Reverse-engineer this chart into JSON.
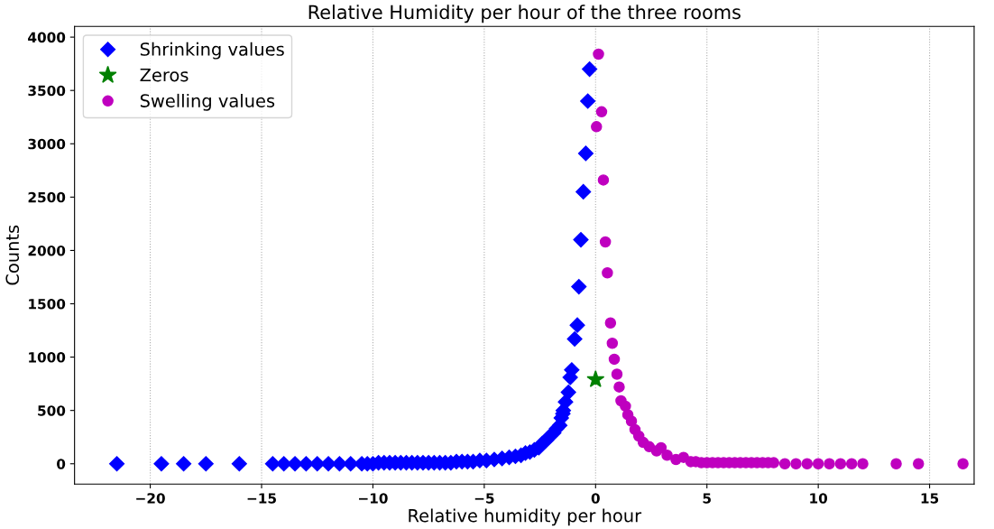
{
  "chart_data": {
    "type": "scatter",
    "title": "Relative Humidity per hour of the three rooms",
    "xlabel": "Relative humidity per hour",
    "ylabel": "Counts",
    "xlim": [
      -23.4,
      17.0
    ],
    "ylim": [
      -190,
      4100
    ],
    "xticks": [
      {
        "value": -20,
        "label": "−20"
      },
      {
        "value": -15,
        "label": "−15"
      },
      {
        "value": -10,
        "label": "−10"
      },
      {
        "value": -5,
        "label": "−5"
      },
      0,
      5,
      10,
      15
    ],
    "yticks": [
      0,
      500,
      1000,
      1500,
      2000,
      2500,
      3000,
      3500,
      4000
    ],
    "grid": "x",
    "legend": "top left",
    "series": [
      {
        "name": "Shrinking values",
        "color": "#0000ff",
        "marker": "diamond",
        "x": [
          -21.5,
          -19.5,
          -18.5,
          -17.5,
          -16.0,
          -14.5,
          -14.0,
          -13.5,
          -13.0,
          -12.5,
          -12.0,
          -11.5,
          -11.0,
          -10.5,
          -10.25,
          -10.0,
          -9.75,
          -9.5,
          -9.25,
          -9.0,
          -8.75,
          -8.5,
          -8.25,
          -8.0,
          -7.75,
          -7.5,
          -7.25,
          -7.0,
          -6.75,
          -6.5,
          -6.25,
          -6.0,
          -5.75,
          -5.5,
          -5.2,
          -4.9,
          -4.55,
          -4.2,
          -3.88,
          -3.6,
          -3.35,
          -3.15,
          -2.95,
          -2.75,
          -2.55,
          -2.4,
          -2.21,
          -2.05,
          -1.88,
          -1.75,
          -1.61,
          -1.47,
          -1.54,
          -1.45,
          -1.35,
          -1.22,
          -1.14,
          -1.07,
          -0.94,
          -0.82,
          -0.75,
          -0.66,
          -0.55,
          -0.44,
          -0.35,
          -0.27
        ],
        "values": [
          0,
          0,
          0,
          0,
          0,
          0,
          0,
          0,
          0,
          0,
          0,
          0,
          0,
          0,
          0,
          0,
          10,
          10,
          10,
          10,
          10,
          10,
          10,
          10,
          10,
          10,
          10,
          10,
          10,
          10,
          20,
          20,
          20,
          20,
          30,
          30,
          40,
          50,
          60,
          70,
          80,
          100,
          110,
          130,
          150,
          190,
          220,
          260,
          290,
          330,
          360,
          470,
          430,
          500,
          580,
          670,
          810,
          880,
          1170,
          1300,
          1660,
          2100,
          2550,
          2910,
          3400,
          3700
        ]
      },
      {
        "name": "Zeros",
        "color": "#008000",
        "marker": "star",
        "x": [
          0
        ],
        "values": [
          790
        ]
      },
      {
        "name": "Swelling values",
        "color": "#bf00bf",
        "marker": "circle",
        "x": [
          0.04,
          0.13,
          0.27,
          0.35,
          0.44,
          0.53,
          0.67,
          0.75,
          0.84,
          0.96,
          1.06,
          1.14,
          1.34,
          1.45,
          1.61,
          1.77,
          1.94,
          2.14,
          2.41,
          2.74,
          2.94,
          3.21,
          3.61,
          3.95,
          4.28,
          4.5,
          4.75,
          5.0,
          5.25,
          5.5,
          5.75,
          6.0,
          6.25,
          6.5,
          6.75,
          7.0,
          7.25,
          7.5,
          7.75,
          8.0,
          8.5,
          9.0,
          9.5,
          10.0,
          10.5,
          11.0,
          11.5,
          12.0,
          13.5,
          14.5,
          16.5
        ],
        "values": [
          3160,
          3840,
          3300,
          2660,
          2080,
          1790,
          1320,
          1130,
          980,
          840,
          720,
          590,
          540,
          460,
          400,
          320,
          260,
          200,
          160,
          120,
          150,
          80,
          40,
          60,
          20,
          20,
          10,
          10,
          10,
          10,
          10,
          10,
          10,
          10,
          10,
          10,
          10,
          10,
          10,
          10,
          0,
          0,
          0,
          0,
          0,
          0,
          0,
          0,
          0,
          0,
          0
        ]
      }
    ]
  }
}
